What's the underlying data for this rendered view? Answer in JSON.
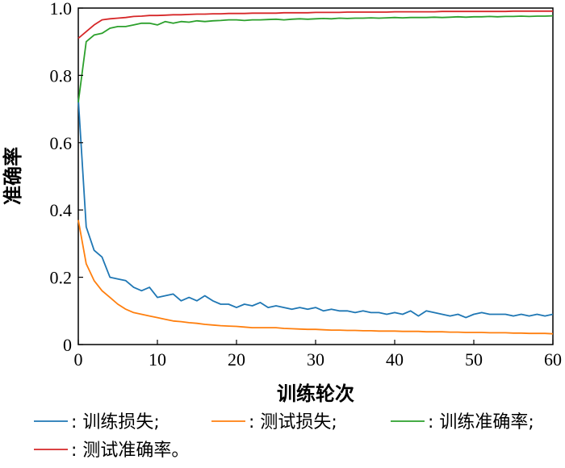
{
  "chart_data": {
    "type": "line",
    "xlabel": "训练轮次",
    "ylabel": "准确率",
    "xlim": [
      0,
      60
    ],
    "ylim": [
      0,
      1.0
    ],
    "xticks": [
      "0",
      "10",
      "20",
      "30",
      "40",
      "50",
      "60"
    ],
    "yticks": [
      "0",
      "0.2",
      "0.4",
      "0.6",
      "0.8",
      "1.0"
    ],
    "grid": false,
    "legend_position": "bottom",
    "x": [
      0,
      1,
      2,
      3,
      4,
      5,
      6,
      7,
      8,
      9,
      10,
      11,
      12,
      13,
      14,
      15,
      16,
      17,
      18,
      19,
      20,
      21,
      22,
      23,
      24,
      25,
      26,
      27,
      28,
      29,
      30,
      31,
      32,
      33,
      34,
      35,
      36,
      37,
      38,
      39,
      40,
      41,
      42,
      43,
      44,
      45,
      46,
      47,
      48,
      49,
      50,
      51,
      52,
      53,
      54,
      55,
      56,
      57,
      58,
      59,
      60
    ],
    "series": [
      {
        "name": "训练损失",
        "color": "#1f77b4",
        "values": [
          0.73,
          0.35,
          0.28,
          0.26,
          0.2,
          0.195,
          0.19,
          0.17,
          0.16,
          0.17,
          0.14,
          0.145,
          0.15,
          0.13,
          0.14,
          0.13,
          0.145,
          0.13,
          0.12,
          0.12,
          0.11,
          0.12,
          0.115,
          0.125,
          0.11,
          0.115,
          0.11,
          0.105,
          0.11,
          0.105,
          0.11,
          0.1,
          0.105,
          0.1,
          0.1,
          0.095,
          0.1,
          0.095,
          0.095,
          0.09,
          0.095,
          0.09,
          0.1,
          0.085,
          0.1,
          0.095,
          0.09,
          0.085,
          0.09,
          0.08,
          0.09,
          0.095,
          0.09,
          0.09,
          0.09,
          0.085,
          0.09,
          0.085,
          0.09,
          0.085,
          0.09
        ]
      },
      {
        "name": "测试损失",
        "color": "#ff7f0e",
        "values": [
          0.37,
          0.24,
          0.19,
          0.16,
          0.14,
          0.12,
          0.105,
          0.095,
          0.09,
          0.085,
          0.08,
          0.075,
          0.07,
          0.068,
          0.065,
          0.063,
          0.06,
          0.058,
          0.056,
          0.055,
          0.054,
          0.052,
          0.05,
          0.05,
          0.05,
          0.05,
          0.048,
          0.047,
          0.046,
          0.045,
          0.045,
          0.044,
          0.043,
          0.043,
          0.042,
          0.042,
          0.041,
          0.041,
          0.04,
          0.04,
          0.04,
          0.039,
          0.039,
          0.039,
          0.038,
          0.038,
          0.038,
          0.037,
          0.037,
          0.036,
          0.036,
          0.036,
          0.035,
          0.035,
          0.035,
          0.034,
          0.034,
          0.033,
          0.033,
          0.033,
          0.032
        ]
      },
      {
        "name": "训练准确率",
        "color": "#2ca02c",
        "values": [
          0.72,
          0.9,
          0.92,
          0.925,
          0.94,
          0.945,
          0.945,
          0.95,
          0.955,
          0.955,
          0.95,
          0.96,
          0.955,
          0.96,
          0.958,
          0.962,
          0.96,
          0.962,
          0.963,
          0.965,
          0.965,
          0.963,
          0.965,
          0.965,
          0.966,
          0.967,
          0.965,
          0.967,
          0.968,
          0.967,
          0.968,
          0.969,
          0.968,
          0.97,
          0.969,
          0.97,
          0.97,
          0.971,
          0.97,
          0.971,
          0.972,
          0.971,
          0.972,
          0.972,
          0.972,
          0.973,
          0.972,
          0.973,
          0.974,
          0.973,
          0.974,
          0.974,
          0.975,
          0.974,
          0.975,
          0.975,
          0.976,
          0.975,
          0.976,
          0.976,
          0.977
        ]
      },
      {
        "name": "测试准确率",
        "color": "#d62728",
        "values": [
          0.91,
          0.93,
          0.95,
          0.965,
          0.968,
          0.97,
          0.972,
          0.975,
          0.976,
          0.978,
          0.978,
          0.979,
          0.98,
          0.98,
          0.981,
          0.982,
          0.982,
          0.983,
          0.983,
          0.984,
          0.984,
          0.984,
          0.985,
          0.985,
          0.985,
          0.985,
          0.986,
          0.986,
          0.986,
          0.986,
          0.987,
          0.987,
          0.987,
          0.987,
          0.988,
          0.988,
          0.988,
          0.988,
          0.988,
          0.988,
          0.989,
          0.989,
          0.989,
          0.989,
          0.989,
          0.989,
          0.99,
          0.99,
          0.99,
          0.99,
          0.99,
          0.99,
          0.99,
          0.99,
          0.99,
          0.991,
          0.991,
          0.991,
          0.991,
          0.991,
          0.991
        ]
      }
    ],
    "legend_entries": [
      ": 训练损失;",
      ": 测试损失;",
      ": 训练准确率;",
      ": 测试准确率。"
    ]
  }
}
